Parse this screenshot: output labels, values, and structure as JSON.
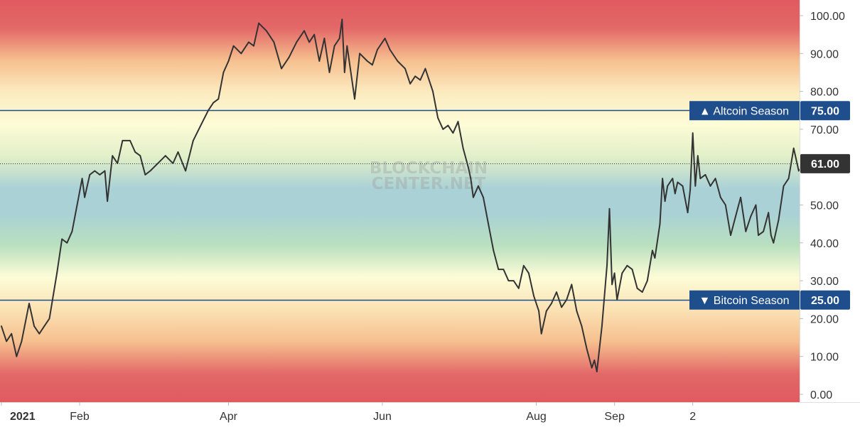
{
  "chart_data": {
    "type": "line",
    "watermark": [
      "BLOCKCHAIN",
      "CENTER.NET"
    ],
    "ylim": [
      0,
      100
    ],
    "y_ticks": [
      0,
      10,
      20,
      30,
      40,
      50,
      60,
      70,
      80,
      90,
      100
    ],
    "y_tick_labels": [
      "0.00",
      "10.00",
      "20.00",
      "30.00",
      "40.00",
      "50.00",
      "60.00",
      "70.00",
      "80.00",
      "90.00",
      "100.00"
    ],
    "x_tick_labels": [
      {
        "text": "2021",
        "date": "2021-01-01",
        "bold": true
      },
      {
        "text": "Feb",
        "date": "2021-02-01",
        "bold": false
      },
      {
        "text": "Apr",
        "date": "2021-04-01",
        "bold": false
      },
      {
        "text": "Jun",
        "date": "2021-06-01",
        "bold": false
      },
      {
        "text": "Aug",
        "date": "2021-08-01",
        "bold": false
      },
      {
        "text": "Sep",
        "date": "2021-09-01",
        "bold": false
      },
      {
        "text": "2",
        "date": "2021-10-02",
        "bold": false
      }
    ],
    "reference_lines": [
      {
        "label": "▲ Altcoin Season",
        "value": 75,
        "value_label": "75.00",
        "color": "#1f4e8c"
      },
      {
        "label": "▼ Bitcoin Season",
        "value": 25,
        "value_label": "25.00",
        "color": "#1f4e8c"
      }
    ],
    "current_value": {
      "value": 61,
      "label": "61.00",
      "color": "#333333"
    },
    "series": [
      {
        "color": "#333333",
        "points": [
          [
            "2021-01-01",
            18
          ],
          [
            "2021-01-03",
            14
          ],
          [
            "2021-01-05",
            16
          ],
          [
            "2021-01-07",
            10
          ],
          [
            "2021-01-09",
            14
          ],
          [
            "2021-01-12",
            24
          ],
          [
            "2021-01-14",
            18
          ],
          [
            "2021-01-16",
            16
          ],
          [
            "2021-01-18",
            18
          ],
          [
            "2021-01-20",
            20
          ],
          [
            "2021-01-23",
            32
          ],
          [
            "2021-01-25",
            41
          ],
          [
            "2021-01-27",
            40
          ],
          [
            "2021-01-29",
            43
          ],
          [
            "2021-01-31",
            50
          ],
          [
            "2021-02-02",
            57
          ],
          [
            "2021-02-03",
            52
          ],
          [
            "2021-02-05",
            58
          ],
          [
            "2021-02-07",
            59
          ],
          [
            "2021-02-09",
            58
          ],
          [
            "2021-02-11",
            59
          ],
          [
            "2021-02-12",
            51
          ],
          [
            "2021-02-14",
            63
          ],
          [
            "2021-02-16",
            61
          ],
          [
            "2021-02-18",
            67
          ],
          [
            "2021-02-21",
            67
          ],
          [
            "2021-02-23",
            64
          ],
          [
            "2021-02-25",
            63
          ],
          [
            "2021-02-27",
            58
          ],
          [
            "2021-03-01",
            59
          ],
          [
            "2021-03-04",
            61
          ],
          [
            "2021-03-07",
            63
          ],
          [
            "2021-03-10",
            61
          ],
          [
            "2021-03-12",
            64
          ],
          [
            "2021-03-15",
            59
          ],
          [
            "2021-03-18",
            67
          ],
          [
            "2021-03-21",
            71
          ],
          [
            "2021-03-24",
            75
          ],
          [
            "2021-03-26",
            77
          ],
          [
            "2021-03-28",
            78
          ],
          [
            "2021-03-30",
            85
          ],
          [
            "2021-04-01",
            88
          ],
          [
            "2021-04-03",
            92
          ],
          [
            "2021-04-06",
            90
          ],
          [
            "2021-04-09",
            93
          ],
          [
            "2021-04-11",
            92
          ],
          [
            "2021-04-13",
            98
          ],
          [
            "2021-04-16",
            96
          ],
          [
            "2021-04-19",
            93
          ],
          [
            "2021-04-22",
            86
          ],
          [
            "2021-04-25",
            89
          ],
          [
            "2021-04-28",
            93
          ],
          [
            "2021-05-01",
            96
          ],
          [
            "2021-05-03",
            93
          ],
          [
            "2021-05-05",
            95
          ],
          [
            "2021-05-07",
            88
          ],
          [
            "2021-05-09",
            94
          ],
          [
            "2021-05-11",
            85
          ],
          [
            "2021-05-13",
            92
          ],
          [
            "2021-05-15",
            94
          ],
          [
            "2021-05-16",
            99
          ],
          [
            "2021-05-17",
            85
          ],
          [
            "2021-05-18",
            92
          ],
          [
            "2021-05-21",
            78
          ],
          [
            "2021-05-23",
            90
          ],
          [
            "2021-05-26",
            88
          ],
          [
            "2021-05-28",
            87
          ],
          [
            "2021-05-30",
            91
          ],
          [
            "2021-06-02",
            94
          ],
          [
            "2021-06-04",
            91
          ],
          [
            "2021-06-07",
            88
          ],
          [
            "2021-06-10",
            86
          ],
          [
            "2021-06-12",
            82
          ],
          [
            "2021-06-14",
            84
          ],
          [
            "2021-06-16",
            83
          ],
          [
            "2021-06-18",
            86
          ],
          [
            "2021-06-21",
            80
          ],
          [
            "2021-06-23",
            73
          ],
          [
            "2021-06-25",
            70
          ],
          [
            "2021-06-27",
            71
          ],
          [
            "2021-06-29",
            69
          ],
          [
            "2021-07-01",
            72
          ],
          [
            "2021-07-03",
            65
          ],
          [
            "2021-07-05",
            60
          ],
          [
            "2021-07-06",
            57
          ],
          [
            "2021-07-07",
            52
          ],
          [
            "2021-07-09",
            55
          ],
          [
            "2021-07-11",
            52
          ],
          [
            "2021-07-13",
            45
          ],
          [
            "2021-07-15",
            38
          ],
          [
            "2021-07-17",
            33
          ],
          [
            "2021-07-19",
            33
          ],
          [
            "2021-07-21",
            30
          ],
          [
            "2021-07-23",
            30
          ],
          [
            "2021-07-25",
            28
          ],
          [
            "2021-07-27",
            34
          ],
          [
            "2021-07-29",
            32
          ],
          [
            "2021-07-31",
            26
          ],
          [
            "2021-08-02",
            22
          ],
          [
            "2021-08-03",
            16
          ],
          [
            "2021-08-05",
            22
          ],
          [
            "2021-08-07",
            24
          ],
          [
            "2021-08-09",
            27
          ],
          [
            "2021-08-11",
            23
          ],
          [
            "2021-08-13",
            25
          ],
          [
            "2021-08-15",
            29
          ],
          [
            "2021-08-17",
            22
          ],
          [
            "2021-08-19",
            18
          ],
          [
            "2021-08-21",
            12
          ],
          [
            "2021-08-23",
            7
          ],
          [
            "2021-08-24",
            9
          ],
          [
            "2021-08-25",
            6
          ],
          [
            "2021-08-27",
            18
          ],
          [
            "2021-08-29",
            34
          ],
          [
            "2021-08-30",
            49
          ],
          [
            "2021-08-31",
            29
          ],
          [
            "2021-09-01",
            32
          ],
          [
            "2021-09-02",
            25
          ],
          [
            "2021-09-04",
            32
          ],
          [
            "2021-09-06",
            34
          ],
          [
            "2021-09-08",
            33
          ],
          [
            "2021-09-10",
            28
          ],
          [
            "2021-09-12",
            27
          ],
          [
            "2021-09-14",
            30
          ],
          [
            "2021-09-16",
            38
          ],
          [
            "2021-09-17",
            36
          ],
          [
            "2021-09-19",
            45
          ],
          [
            "2021-09-20",
            57
          ],
          [
            "2021-09-21",
            51
          ],
          [
            "2021-09-22",
            55
          ],
          [
            "2021-09-24",
            57
          ],
          [
            "2021-09-25",
            53
          ],
          [
            "2021-09-26",
            56
          ],
          [
            "2021-09-28",
            55
          ],
          [
            "2021-09-30",
            48
          ],
          [
            "2021-10-01",
            54
          ],
          [
            "2021-10-02",
            69
          ],
          [
            "2021-10-03",
            55
          ],
          [
            "2021-10-04",
            63
          ],
          [
            "2021-10-05",
            57
          ],
          [
            "2021-10-07",
            58
          ],
          [
            "2021-10-09",
            55
          ],
          [
            "2021-10-11",
            57
          ],
          [
            "2021-10-13",
            52
          ],
          [
            "2021-10-15",
            50
          ],
          [
            "2021-10-17",
            42
          ],
          [
            "2021-10-19",
            47
          ],
          [
            "2021-10-21",
            52
          ],
          [
            "2021-10-23",
            43
          ],
          [
            "2021-10-25",
            47
          ],
          [
            "2021-10-27",
            50
          ],
          [
            "2021-10-28",
            42
          ],
          [
            "2021-10-30",
            43
          ],
          [
            "2021-11-01",
            48
          ],
          [
            "2021-11-02",
            42
          ],
          [
            "2021-11-03",
            40
          ],
          [
            "2021-11-05",
            46
          ],
          [
            "2021-11-07",
            55
          ],
          [
            "2021-11-09",
            57
          ],
          [
            "2021-11-11",
            65
          ],
          [
            "2021-11-13",
            59
          ],
          [
            "2021-11-15",
            61
          ]
        ]
      }
    ]
  }
}
